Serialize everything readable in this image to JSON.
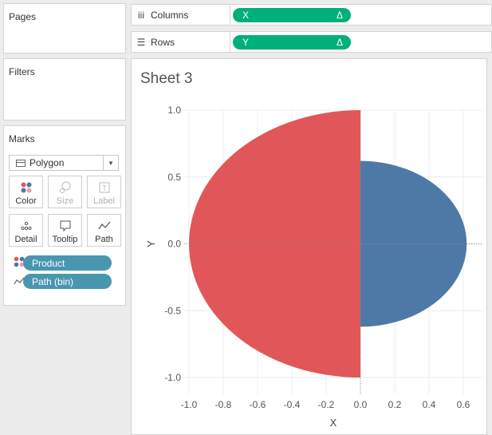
{
  "pages": {
    "title": "Pages"
  },
  "filters": {
    "title": "Filters"
  },
  "marks": {
    "title": "Marks",
    "mark_type": "Polygon",
    "buttons": [
      {
        "label": "Color",
        "icon": "color-icon",
        "enabled": true
      },
      {
        "label": "Size",
        "icon": "size-icon",
        "enabled": false
      },
      {
        "label": "Label",
        "icon": "label-icon",
        "enabled": false
      },
      {
        "label": "Detail",
        "icon": "detail-icon",
        "enabled": true
      },
      {
        "label": "Tooltip",
        "icon": "tooltip-icon",
        "enabled": true
      },
      {
        "label": "Path",
        "icon": "path-icon",
        "enabled": true
      }
    ],
    "fields": [
      {
        "name": "Product",
        "icon": "color-icon"
      },
      {
        "name": "Path (bin)",
        "icon": "path-icon"
      }
    ]
  },
  "shelves": {
    "columns": {
      "label": "Columns",
      "pill": "X",
      "pill_symbol": "Δ"
    },
    "rows": {
      "label": "Rows",
      "pill": "Y",
      "pill_symbol": "Δ"
    }
  },
  "sheet": {
    "title": "Sheet 3"
  },
  "colors": {
    "red": "#e15759",
    "blue": "#4e79a7",
    "green_pill": "#00b07a",
    "blue_pill": "#4896b0"
  },
  "chart_data": {
    "type": "area",
    "xlabel": "X",
    "ylabel": "Y",
    "xlim": [
      -1.0,
      0.6
    ],
    "ylim": [
      -1.0,
      1.0
    ],
    "x_ticks": [
      "-1.0",
      "-0.8",
      "-0.6",
      "-0.4",
      "-0.2",
      "0.0",
      "0.2",
      "0.4",
      "0.6"
    ],
    "y_ticks": [
      "1.0",
      "0.5",
      "0.0",
      "-0.5",
      "-1.0"
    ],
    "grid": true,
    "series": [
      {
        "shape": "left half-ellipse",
        "color": "#e15759",
        "center": [
          0,
          0
        ],
        "rx": 1.0,
        "ry": 1.0,
        "x_range": [
          -1.0,
          0.0
        ]
      },
      {
        "shape": "right half-ellipse",
        "color": "#4e79a7",
        "center": [
          0,
          0
        ],
        "rx": 0.62,
        "ry": 0.62,
        "x_range": [
          0.0,
          0.62
        ]
      }
    ]
  }
}
